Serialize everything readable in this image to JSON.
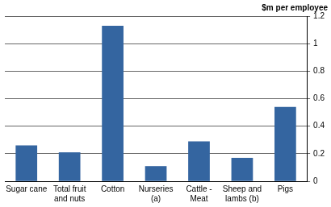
{
  "chart_data": {
    "type": "bar",
    "ylabel": "$m per employee",
    "categories": [
      "Sugar cane",
      "Total fruit and nuts",
      "Cotton",
      "Nurseries (a)",
      "Cattle - Meat",
      "Sheep and lambs (b)",
      "Pigs"
    ],
    "values": [
      0.26,
      0.21,
      1.13,
      0.11,
      0.29,
      0.17,
      0.54
    ],
    "color": "#3465a0",
    "ylim": [
      0,
      1.2
    ],
    "yticks": [
      0,
      0.2,
      0.4,
      0.6,
      0.8,
      1,
      1.2
    ],
    "grid": true
  }
}
